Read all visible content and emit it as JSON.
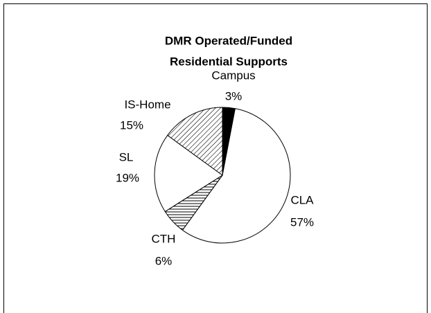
{
  "chart_data": {
    "type": "pie",
    "title": "DMR Operated/Funded",
    "subtitle": "Residential Supports",
    "categories": [
      "Campus",
      "CLA",
      "CTH",
      "SL",
      "IS-Home"
    ],
    "values": [
      3,
      57,
      6,
      19,
      15
    ],
    "value_labels": [
      "3%",
      "57%",
      "6%",
      "19%",
      "15%"
    ],
    "colors": [
      "#000000",
      "#ffffff",
      "#ffffff",
      "#ffffff",
      "#ffffff"
    ],
    "hatch": [
      "none",
      "none",
      "horizontal",
      "none",
      "diagonal"
    ]
  }
}
